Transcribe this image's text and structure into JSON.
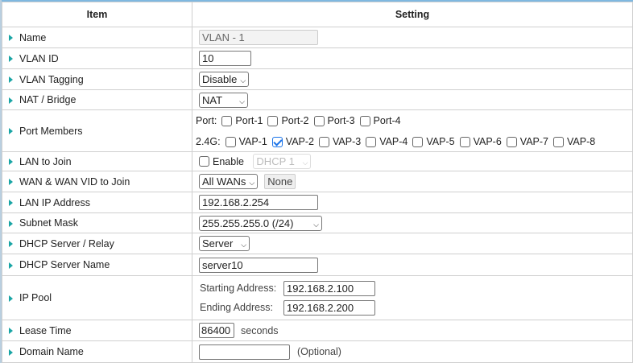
{
  "header": {
    "item": "Item",
    "setting": "Setting"
  },
  "rows": {
    "name": {
      "label": "Name",
      "value": "VLAN - 1"
    },
    "vlan_id": {
      "label": "VLAN ID",
      "value": "10"
    },
    "vlan_tagging": {
      "label": "VLAN Tagging",
      "value": "Disable"
    },
    "nat_bridge": {
      "label": "NAT / Bridge",
      "value": "NAT"
    },
    "port_members": {
      "label": "Port Members",
      "port_prefix": "Port:",
      "ports": [
        {
          "label": "Port-1",
          "checked": false
        },
        {
          "label": "Port-2",
          "checked": false
        },
        {
          "label": "Port-3",
          "checked": false
        },
        {
          "label": "Port-4",
          "checked": false
        }
      ],
      "wifi_prefix": "2.4G:",
      "vaps": [
        {
          "label": "VAP-1",
          "checked": false
        },
        {
          "label": "VAP-2",
          "checked": true
        },
        {
          "label": "VAP-3",
          "checked": false
        },
        {
          "label": "VAP-4",
          "checked": false
        },
        {
          "label": "VAP-5",
          "checked": false
        },
        {
          "label": "VAP-6",
          "checked": false
        },
        {
          "label": "VAP-7",
          "checked": false
        },
        {
          "label": "VAP-8",
          "checked": false
        }
      ]
    },
    "lan_to_join": {
      "label": "LAN to Join",
      "enable_label": "Enable",
      "enabled": false,
      "dhcp_value": "DHCP 1"
    },
    "wan_join": {
      "label": "WAN & WAN VID to Join",
      "value": "All WANs",
      "none_label": "None"
    },
    "lan_ip": {
      "label": "LAN IP Address",
      "value": "192.168.2.254"
    },
    "subnet": {
      "label": "Subnet Mask",
      "value": "255.255.255.0 (/24)"
    },
    "dhcp_mode": {
      "label": "DHCP Server / Relay",
      "value": "Server"
    },
    "dhcp_name": {
      "label": "DHCP Server Name",
      "value": "server10"
    },
    "ip_pool": {
      "label": "IP Pool",
      "start_label": "Starting Address:",
      "start": "192.168.2.100",
      "end_label": "Ending Address:",
      "end": "192.168.2.200"
    },
    "lease": {
      "label": "Lease Time",
      "value": "86400",
      "unit": "seconds"
    },
    "domain": {
      "label": "Domain Name",
      "value": "",
      "hint": "(Optional)"
    }
  },
  "colors": {
    "arrow": "#1aa5a5",
    "top_border": "#7fb8e0",
    "checkbox_checked": "#1a73e8"
  }
}
